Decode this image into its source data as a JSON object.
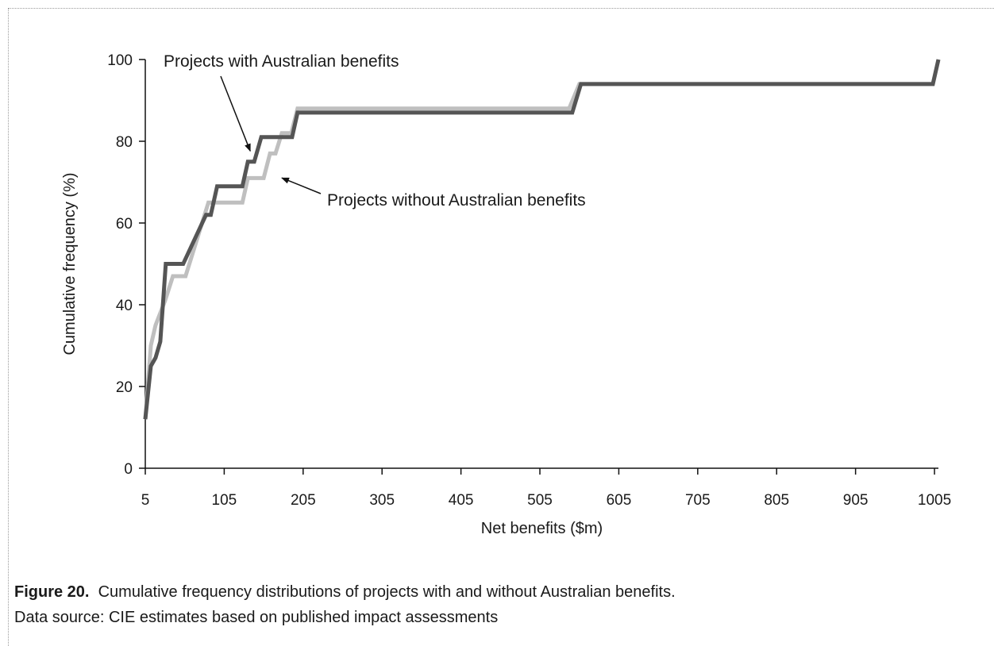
{
  "chart_data": {
    "type": "line",
    "xlabel": "Net benefits ($m)",
    "ylabel": "Cumulative frequency (%)",
    "xlim": [
      5,
      1010
    ],
    "ylim": [
      0,
      100
    ],
    "x_ticks": [
      5,
      105,
      205,
      305,
      405,
      505,
      605,
      705,
      805,
      905,
      1005
    ],
    "y_ticks": [
      0,
      20,
      40,
      60,
      80,
      100
    ],
    "grid": false,
    "legend": "none",
    "series": [
      {
        "name": "Projects with Australian benefits",
        "color": "#555555",
        "points": [
          [
            5,
            12
          ],
          [
            12,
            25
          ],
          [
            18,
            27
          ],
          [
            24,
            31
          ],
          [
            31,
            50
          ],
          [
            53,
            50
          ],
          [
            82,
            62
          ],
          [
            88,
            62
          ],
          [
            96,
            69
          ],
          [
            128,
            69
          ],
          [
            135,
            75
          ],
          [
            143,
            75
          ],
          [
            152,
            81
          ],
          [
            165,
            81
          ],
          [
            171,
            81
          ],
          [
            184,
            81
          ],
          [
            191,
            81
          ],
          [
            198,
            87
          ],
          [
            210,
            87
          ],
          [
            250,
            87
          ],
          [
            300,
            87
          ],
          [
            350,
            87
          ],
          [
            400,
            87
          ],
          [
            450,
            87
          ],
          [
            500,
            87
          ],
          [
            546,
            87
          ],
          [
            557,
            94
          ],
          [
            570,
            94
          ],
          [
            600,
            94
          ],
          [
            700,
            94
          ],
          [
            800,
            94
          ],
          [
            900,
            94
          ],
          [
            1000,
            94
          ],
          [
            1003,
            94
          ],
          [
            1010,
            100
          ]
        ]
      },
      {
        "name": "Projects without Australian benefits",
        "color": "#bfbfbf",
        "points": [
          [
            5,
            12
          ],
          [
            12,
            30
          ],
          [
            18,
            35
          ],
          [
            30,
            41
          ],
          [
            40,
            47
          ],
          [
            56,
            47
          ],
          [
            85,
            65
          ],
          [
            128,
            65
          ],
          [
            135,
            71
          ],
          [
            155,
            71
          ],
          [
            163,
            77
          ],
          [
            170,
            77
          ],
          [
            178,
            82
          ],
          [
            190,
            82
          ],
          [
            198,
            88
          ],
          [
            250,
            88
          ],
          [
            300,
            88
          ],
          [
            350,
            88
          ],
          [
            400,
            88
          ],
          [
            450,
            88
          ],
          [
            500,
            88
          ],
          [
            542,
            88
          ],
          [
            555,
            94
          ],
          [
            600,
            94
          ],
          [
            700,
            94
          ],
          [
            800,
            94
          ],
          [
            900,
            94
          ],
          [
            1000,
            94
          ],
          [
            1003,
            94
          ],
          [
            1010,
            100
          ]
        ]
      }
    ],
    "annotations": [
      {
        "text": "Projects with Australian benefits",
        "x": 140,
        "y": 78
      },
      {
        "text": "Projects without Australian benefits",
        "x": 170,
        "y": 72
      }
    ]
  },
  "caption": {
    "figure_label": "Figure 20.",
    "figure_text": "Cumulative frequency distributions of projects with and without Australian benefits.",
    "source": "Data source: CIE estimates based on published impact assessments"
  }
}
